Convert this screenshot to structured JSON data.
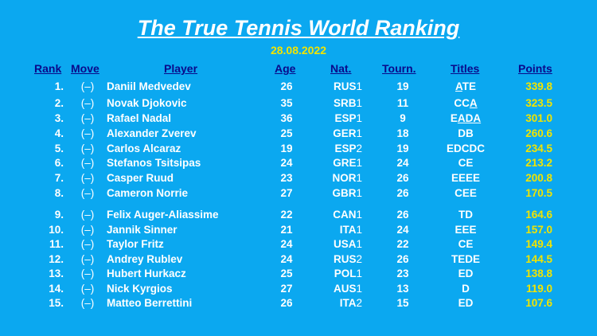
{
  "title": "The True Tennis World Ranking",
  "date": "28.08.2022",
  "headers": {
    "rank": "Rank",
    "move": "Move",
    "player": "Player",
    "age": "Age",
    "nat": "Nat.",
    "tourn": "Tourn.",
    "titles": "Titles",
    "points": "Points"
  },
  "rows": [
    {
      "rank": "1.",
      "move": "(–)",
      "player": "Daniil Medvedev",
      "age": "26",
      "nat": "RUS",
      "nat_num": "1",
      "tourn": "19",
      "titles": [
        {
          "t": "A",
          "u": true
        },
        {
          "t": "TE",
          "u": false
        }
      ],
      "points": "339.8"
    },
    {
      "rank": "2.",
      "move": "(–)",
      "player": "Novak Djokovic",
      "age": "35",
      "nat": "SRB",
      "nat_num": "1",
      "tourn": "11",
      "titles": [
        {
          "t": "CC",
          "u": false
        },
        {
          "t": "A",
          "u": true
        }
      ],
      "points": "323.5"
    },
    {
      "rank": "3.",
      "move": "(–)",
      "player": "Rafael Nadal",
      "age": "36",
      "nat": "ESP",
      "nat_num": "1",
      "tourn": "9",
      "titles": [
        {
          "t": "E",
          "u": false
        },
        {
          "t": "ADA",
          "u": true
        }
      ],
      "points": "301.0"
    },
    {
      "rank": "4.",
      "move": "(–)",
      "player": "Alexander Zverev",
      "age": "25",
      "nat": "GER",
      "nat_num": "1",
      "tourn": "18",
      "titles": [
        {
          "t": "DB",
          "u": false
        }
      ],
      "points": "260.6"
    },
    {
      "rank": "5.",
      "move": "(–)",
      "player": "Carlos Alcaraz",
      "age": "19",
      "nat": "ESP",
      "nat_num": "2",
      "tourn": "19",
      "titles": [
        {
          "t": "EDCDC",
          "u": false
        }
      ],
      "points": "234.5"
    },
    {
      "rank": "6.",
      "move": "(–)",
      "player": "Stefanos Tsitsipas",
      "age": "24",
      "nat": "GRE",
      "nat_num": "1",
      "tourn": "24",
      "titles": [
        {
          "t": "CE",
          "u": false
        }
      ],
      "points": "213.2"
    },
    {
      "rank": "7.",
      "move": "(–)",
      "player": "Casper Ruud",
      "age": "23",
      "nat": "NOR",
      "nat_num": "1",
      "tourn": "26",
      "titles": [
        {
          "t": "EEEE",
          "u": false
        }
      ],
      "points": "200.8"
    },
    {
      "rank": "8.",
      "move": "(–)",
      "player": "Cameron Norrie",
      "age": "27",
      "nat": "GBR",
      "nat_num": "1",
      "tourn": "26",
      "titles": [
        {
          "t": "CEE",
          "u": false
        }
      ],
      "points": "170.5"
    },
    {
      "rank": "9.",
      "move": "(–)",
      "player": "Felix Auger-Aliassime",
      "age": "22",
      "nat": "CAN",
      "nat_num": "1",
      "tourn": "26",
      "titles": [
        {
          "t": "TD",
          "u": false
        }
      ],
      "points": "164.6"
    },
    {
      "rank": "10.",
      "move": "(–)",
      "player": "Jannik Sinner",
      "age": "21",
      "nat": "ITA",
      "nat_num": "1",
      "tourn": "24",
      "titles": [
        {
          "t": "EEE",
          "u": false
        }
      ],
      "points": "157.0"
    },
    {
      "rank": "11.",
      "move": "(–)",
      "player": "Taylor Fritz",
      "age": "24",
      "nat": "USA",
      "nat_num": "1",
      "tourn": "22",
      "titles": [
        {
          "t": "CE",
          "u": false
        }
      ],
      "points": "149.4"
    },
    {
      "rank": "12.",
      "move": "(–)",
      "player": "Andrey Rublev",
      "age": "24",
      "nat": "RUS",
      "nat_num": "2",
      "tourn": "26",
      "titles": [
        {
          "t": "TEDE",
          "u": false
        }
      ],
      "points": "144.5"
    },
    {
      "rank": "13.",
      "move": "(–)",
      "player": "Hubert Hurkacz",
      "age": "25",
      "nat": "POL",
      "nat_num": "1",
      "tourn": "23",
      "titles": [
        {
          "t": "ED",
          "u": false
        }
      ],
      "points": "138.8"
    },
    {
      "rank": "14.",
      "move": "(–)",
      "player": "Nick Kyrgios",
      "age": "27",
      "nat": "AUS",
      "nat_num": "1",
      "tourn": "13",
      "titles": [
        {
          "t": "D",
          "u": false
        }
      ],
      "points": "119.0"
    },
    {
      "rank": "15.",
      "move": "(–)",
      "player": "Matteo Berrettini",
      "age": "26",
      "nat": "ITA",
      "nat_num": "2",
      "tourn": "15",
      "titles": [
        {
          "t": "ED",
          "u": false
        }
      ],
      "points": "107.6"
    }
  ]
}
